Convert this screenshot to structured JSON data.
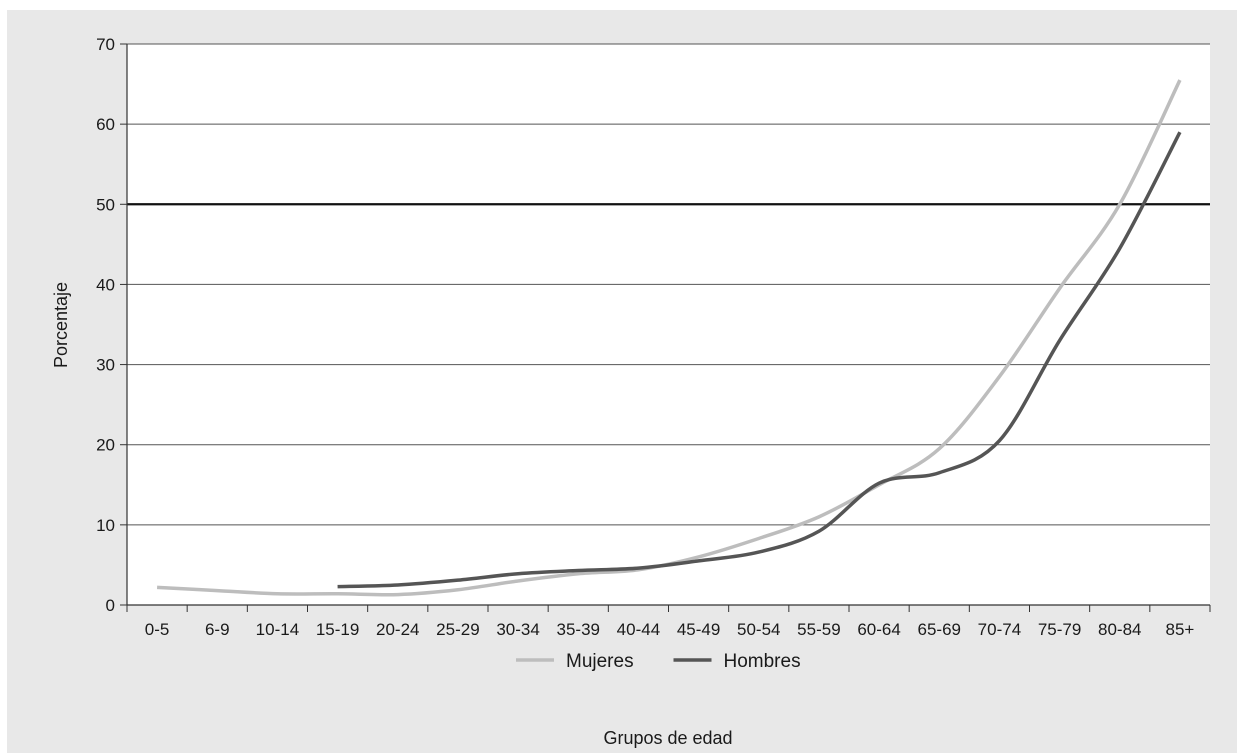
{
  "chart_data": {
    "type": "line",
    "title": "",
    "xlabel": "Grupos de edad",
    "ylabel": "Porcentaje",
    "categories": [
      "0-5",
      "6-9",
      "10-14",
      "15-19",
      "20-24",
      "25-29",
      "30-34",
      "35-39",
      "40-44",
      "45-49",
      "50-54",
      "55-59",
      "60-64",
      "65-69",
      "70-74",
      "75-79",
      "80-84",
      "85+"
    ],
    "ylim": [
      0,
      70
    ],
    "yticks": [
      0,
      10,
      20,
      30,
      40,
      50,
      60,
      70
    ],
    "grid": true,
    "reference_line": 50,
    "legend_position": "bottom",
    "series": [
      {
        "name": "Mujeres",
        "color": "#bdbdbd",
        "values": [
          2.2,
          1.8,
          1.4,
          1.4,
          1.3,
          1.9,
          3.0,
          3.9,
          4.4,
          6.0,
          8.3,
          11.0,
          15.0,
          19.5,
          28.5,
          39.5,
          50.0,
          65.5
        ]
      },
      {
        "name": "Hombres",
        "color": "#555555",
        "values": [
          null,
          null,
          null,
          2.3,
          2.5,
          3.1,
          3.9,
          4.3,
          4.6,
          5.5,
          6.6,
          9.2,
          15.2,
          16.5,
          20.5,
          33.0,
          44.5,
          59.0
        ]
      }
    ]
  }
}
